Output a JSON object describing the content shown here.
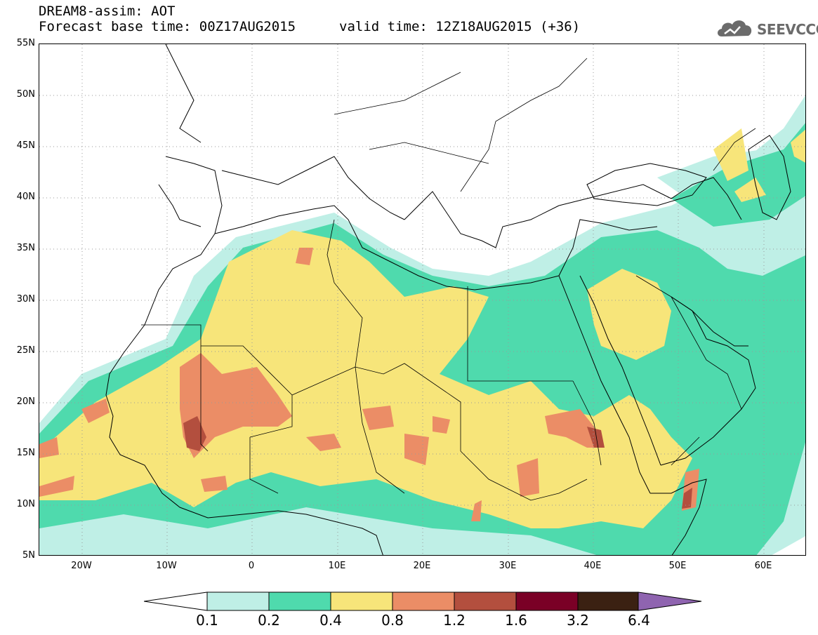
{
  "header": {
    "title": "DREAM8-assim: AOT",
    "base_time": "Forecast base time: 00Z17AUG2015",
    "valid_time": "valid time: 12Z18AUG2015 (+36)"
  },
  "logo": {
    "text": "SEEVCCC",
    "icon": "cloud-icon",
    "color": "#6b6b6b"
  },
  "map": {
    "lon_range": [
      -25,
      65
    ],
    "lat_range": [
      5,
      55
    ],
    "grid": "dotted every 10 degrees longitude, 5 degrees latitude",
    "lat_labels": [
      "55N",
      "50N",
      "45N",
      "40N",
      "35N",
      "30N",
      "25N",
      "20N",
      "15N",
      "10N",
      "5N"
    ],
    "lon_labels": [
      "20W",
      "10W",
      "0",
      "10E",
      "20E",
      "30E",
      "40E",
      "50E",
      "60E"
    ]
  },
  "legend": {
    "values": [
      "0.1",
      "0.2",
      "0.4",
      "0.8",
      "1.2",
      "1.6",
      "3.2",
      "6.4"
    ],
    "colors": [
      "#ffffff",
      "#bfefe6",
      "#4fdaad",
      "#f7e57a",
      "#eb8d66",
      "#b34f3e",
      "#7a0026",
      "#3b2112",
      "#8f64b0"
    ]
  }
}
